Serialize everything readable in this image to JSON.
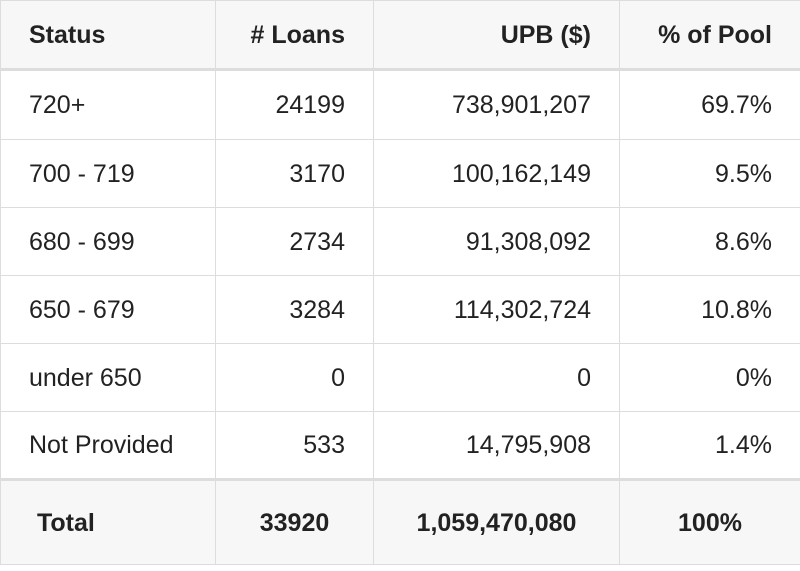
{
  "table": {
    "headers": [
      "Status",
      "# Loans",
      "UPB ($)",
      "% of Pool"
    ],
    "rows": [
      [
        "720+",
        "24199",
        "738,901,207",
        "69.7%"
      ],
      [
        "700 - 719",
        "3170",
        "100,162,149",
        "9.5%"
      ],
      [
        "680 - 699",
        "2734",
        "91,308,092",
        "8.6%"
      ],
      [
        "650 - 679",
        "3284",
        "114,302,724",
        "10.8%"
      ],
      [
        "under 650",
        "0",
        "0",
        "0%"
      ],
      [
        "Not Provided",
        "533",
        "14,795,908",
        "1.4%"
      ]
    ],
    "total": [
      "Total",
      "33920",
      "1,059,470,080",
      "100%"
    ]
  },
  "colors": {
    "header_bg": "#f7f7f7",
    "border": "#dddddd",
    "text": "#222222"
  }
}
